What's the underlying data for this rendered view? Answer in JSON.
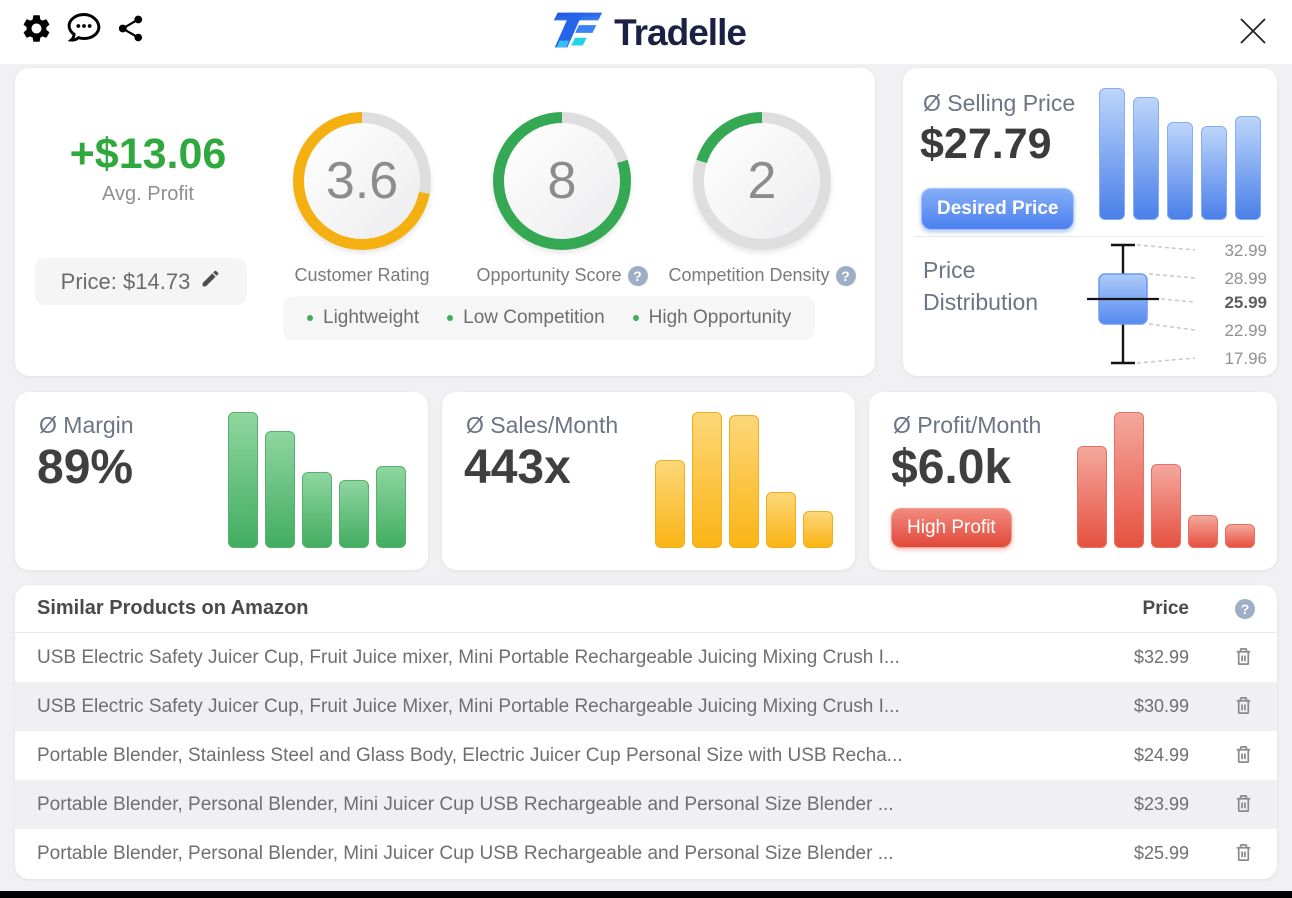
{
  "header": {
    "logo_text": "Tradelle"
  },
  "icons": {
    "help_glyph": "?"
  },
  "profit_summary": {
    "avg_profit": "+$13.06",
    "avg_profit_label": "Avg. Profit",
    "price_text": "Price: $14.73"
  },
  "gauges": [
    {
      "value": "3.6",
      "label": "Customer Rating",
      "fill_percent": 72,
      "color": "#f4b011",
      "track": "#dedede"
    },
    {
      "value": "8",
      "label": "Opportunity Score",
      "fill_percent": 80,
      "color": "#34a853",
      "track": "#dedede"
    },
    {
      "value": "2",
      "label": "Competition Density",
      "fill_percent": 20,
      "color": "#34a853",
      "track": "#dedede"
    }
  ],
  "tags": [
    "Lightweight",
    "Low Competition",
    "High Opportunity"
  ],
  "selling_price_card": {
    "title": "Ø Selling Price",
    "value": "$27.79",
    "button_label": "Desired Price",
    "distribution_label": "Price Distribution"
  },
  "metric_cards": [
    {
      "label": "Ø Margin",
      "value": "89%"
    },
    {
      "label": "Ø Sales/Month",
      "value": "443x"
    },
    {
      "label": "Ø Profit/Month",
      "value": "$6.0k",
      "badge": "High Profit"
    }
  ],
  "table": {
    "title": "Similar Products on Amazon",
    "price_header": "Price",
    "rows": [
      {
        "name": "USB Electric Safety Juicer Cup, Fruit Juice mixer, Mini Portable Rechargeable Juicing Mixing Crush I...",
        "price": "$32.99"
      },
      {
        "name": "USB Electric Safety Juicer Cup, Fruit Juice Mixer, Mini Portable Rechargeable Juicing Mixing Crush I...",
        "price": "$30.99"
      },
      {
        "name": "Portable Blender, Stainless Steel and Glass Body, Electric Juicer Cup Personal Size with USB Recha...",
        "price": "$24.99"
      },
      {
        "name": "Portable Blender, Personal Blender, Mini Juicer Cup USB Rechargeable and Personal Size Blender ...",
        "price": "$23.99"
      },
      {
        "name": "Portable Blender, Personal Blender, Mini Juicer Cup USB Rechargeable and Personal Size Blender ...",
        "price": "$25.99"
      }
    ]
  },
  "chart_data": [
    {
      "id": "selling-price-bars",
      "type": "bar",
      "values_pct": [
        100,
        93,
        74,
        71,
        79
      ],
      "note": "unlabeled sparkline, relative heights",
      "color_top": "#bdd5fa",
      "color_bottom": "#4a80ea"
    },
    {
      "id": "price-distribution-boxplot",
      "type": "boxplot",
      "max": 32.99,
      "q3": 28.99,
      "median": 25.99,
      "q1": 22.99,
      "min": 17.96,
      "labels": [
        "32.99",
        "28.99",
        "25.99",
        "22.99",
        "17.96"
      ],
      "median_label_bold": true
    },
    {
      "id": "margin-bars",
      "type": "bar",
      "values_pct": [
        100,
        86,
        56,
        50,
        60
      ],
      "note": "unlabeled sparkline, relative heights",
      "color_top": "#8fd6a0",
      "color_bottom": "#42ad61"
    },
    {
      "id": "sales-bars",
      "type": "bar",
      "values_pct": [
        65,
        100,
        98,
        41,
        27
      ],
      "note": "unlabeled sparkline, relative heights",
      "color_top": "#fcd779",
      "color_bottom": "#fbb414"
    },
    {
      "id": "profit-bars",
      "type": "bar",
      "values_pct": [
        75,
        100,
        62,
        24,
        18
      ],
      "note": "unlabeled sparkline, relative heights",
      "color_top": "#f4a89e",
      "color_bottom": "#e65140"
    },
    {
      "id": "customer-rating-gauge",
      "type": "radial",
      "value": 3.6,
      "max": 5,
      "color": "#f4b011"
    },
    {
      "id": "opportunity-score-gauge",
      "type": "radial",
      "value": 8,
      "max": 10,
      "color": "#34a853"
    },
    {
      "id": "competition-density-gauge",
      "type": "radial",
      "value": 2,
      "max": 10,
      "color": "#34a853"
    }
  ]
}
